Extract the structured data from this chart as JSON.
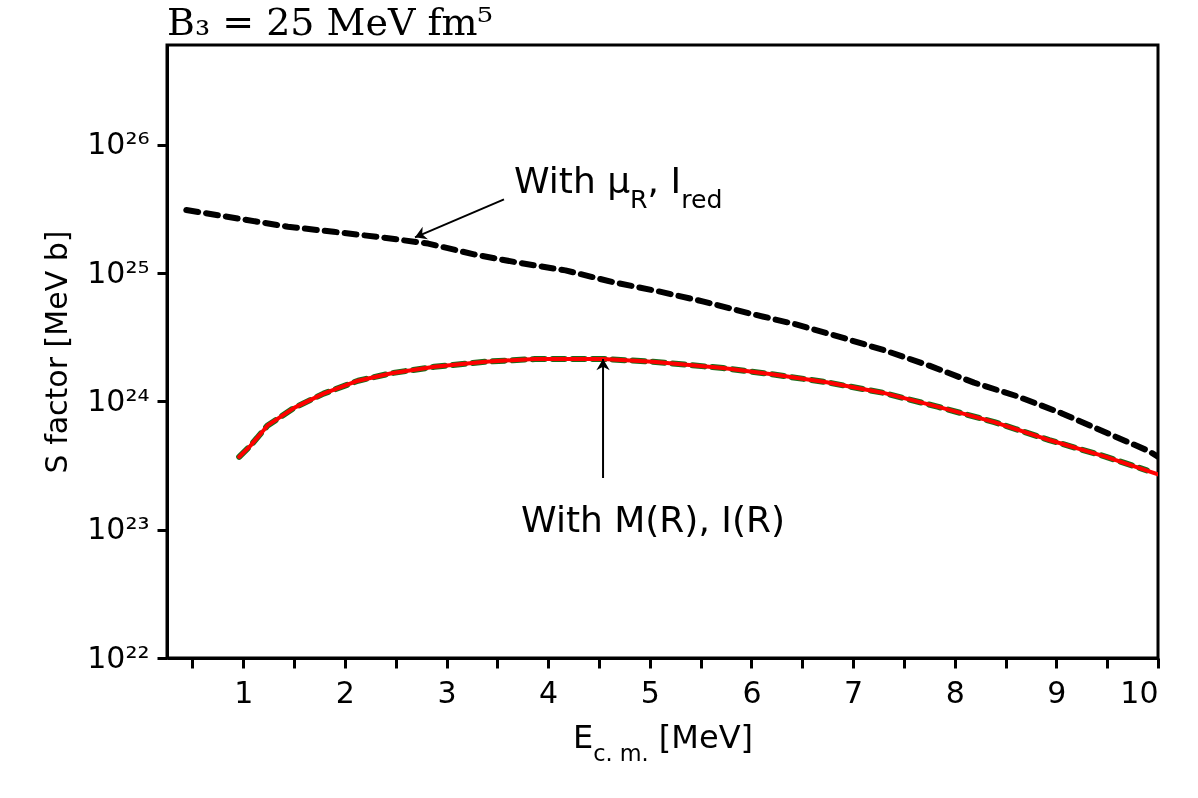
{
  "chart_data": {
    "type": "line",
    "title": "B₃ = 25 MeV fm⁵",
    "xlabel": "E$_{c. m.}$ [MeV]",
    "ylabel": "S factor [MeV b]",
    "log": "y",
    "xlim": [
      0.25,
      10
    ],
    "ylim": [
      1e+22,
      6e+26
    ],
    "xticks": [
      {
        "value": 0.5,
        "label": null
      },
      1,
      {
        "value": 1.5,
        "label": null
      },
      2,
      {
        "value": 2.5,
        "label": null
      },
      3,
      {
        "value": 3.5,
        "label": null
      },
      4,
      {
        "value": 4.5,
        "label": null
      },
      5,
      {
        "value": 5.5,
        "label": null
      },
      6,
      {
        "value": 6.5,
        "label": null
      },
      7,
      {
        "value": 7.5,
        "label": null
      },
      8,
      {
        "value": 8.5,
        "label": null
      },
      9,
      {
        "value": 9.5,
        "label": null
      },
      10
    ],
    "yticks": [
      {
        "value": 1e+22,
        "label": "10²²"
      },
      {
        "value": 1e+23,
        "label": "10²³"
      },
      {
        "value": 1e+24,
        "label": "10²⁴"
      },
      {
        "value": 1e+25,
        "label": "10²⁵"
      },
      {
        "value": 1e+26,
        "label": "10²⁶"
      }
    ],
    "series": [
      {
        "color": "#000000",
        "line_style": "dashed",
        "x": [
          0.44,
          1.44,
          1.89,
          2.36,
          2.82,
          3.27,
          3.72,
          4.17,
          4.64,
          5.09,
          5.53,
          5.96,
          6.43,
          6.86,
          7.31,
          7.75,
          8.19,
          8.61,
          9.05,
          9.47,
          9.91,
          10
        ],
        "values": [
          3.1e+25,
          2.3e+25,
          2.1e+25,
          1.9e+25,
          1.7e+25,
          1.4e+25,
          1.2e+25,
          1.05e+25,
          8.5e+24,
          7.2e+24,
          6e+24,
          4.9e+24,
          4e+24,
          3.2e+24,
          2.5e+24,
          1.9e+24,
          1.4e+24,
          1.1e+24,
          8.1e+23,
          5.8e+23,
          4.1e+23,
          3.7e+23
        ]
      },
      {
        "color": "#1a6b1a",
        "line_style": "dashed",
        "x": [
          0.96,
          1.07,
          1.24,
          1.5,
          1.79,
          2.13,
          2.46,
          2.88,
          3.38,
          3.87,
          4.54,
          5.03,
          5.72,
          6.22,
          6.74,
          7.29,
          7.83,
          8.39,
          8.93,
          9.49,
          9.89
        ],
        "values": [
          3.7e+23,
          4.5e+23,
          6.5e+23,
          8.9e+23,
          1.15e+24,
          1.45e+24,
          1.66e+24,
          1.86e+24,
          2.04e+24,
          2.14e+24,
          2.14e+24,
          2.04e+24,
          1.82e+24,
          1.62e+24,
          1.41e+24,
          1.17e+24,
          9.1e+23,
          6.9e+23,
          5e+23,
          3.7e+23,
          2.9e+23
        ]
      },
      {
        "color": "#ff0000",
        "line_style": "solid",
        "x": [
          0.96,
          1.07,
          1.24,
          1.5,
          1.79,
          2.13,
          2.46,
          2.88,
          3.38,
          3.87,
          4.54,
          5.03,
          5.72,
          6.22,
          6.74,
          7.29,
          7.83,
          8.39,
          8.93,
          9.49,
          10
        ],
        "values": [
          3.7e+23,
          4.5e+23,
          6.5e+23,
          8.9e+23,
          1.15e+24,
          1.45e+24,
          1.66e+24,
          1.86e+24,
          2.04e+24,
          2.14e+24,
          2.14e+24,
          2.04e+24,
          1.82e+24,
          1.62e+24,
          1.41e+24,
          1.17e+24,
          9.1e+23,
          6.9e+23,
          5e+23,
          3.7e+23,
          2.7e+23
        ]
      }
    ],
    "annotations": [
      {
        "text": "With μ$_{R}$, I$_{red}$",
        "x": 2.69,
        "y": 1.9e+25
      },
      {
        "text": "With M(R), I(R)",
        "x": 4.54,
        "y": 2.14e+24
      }
    ]
  }
}
